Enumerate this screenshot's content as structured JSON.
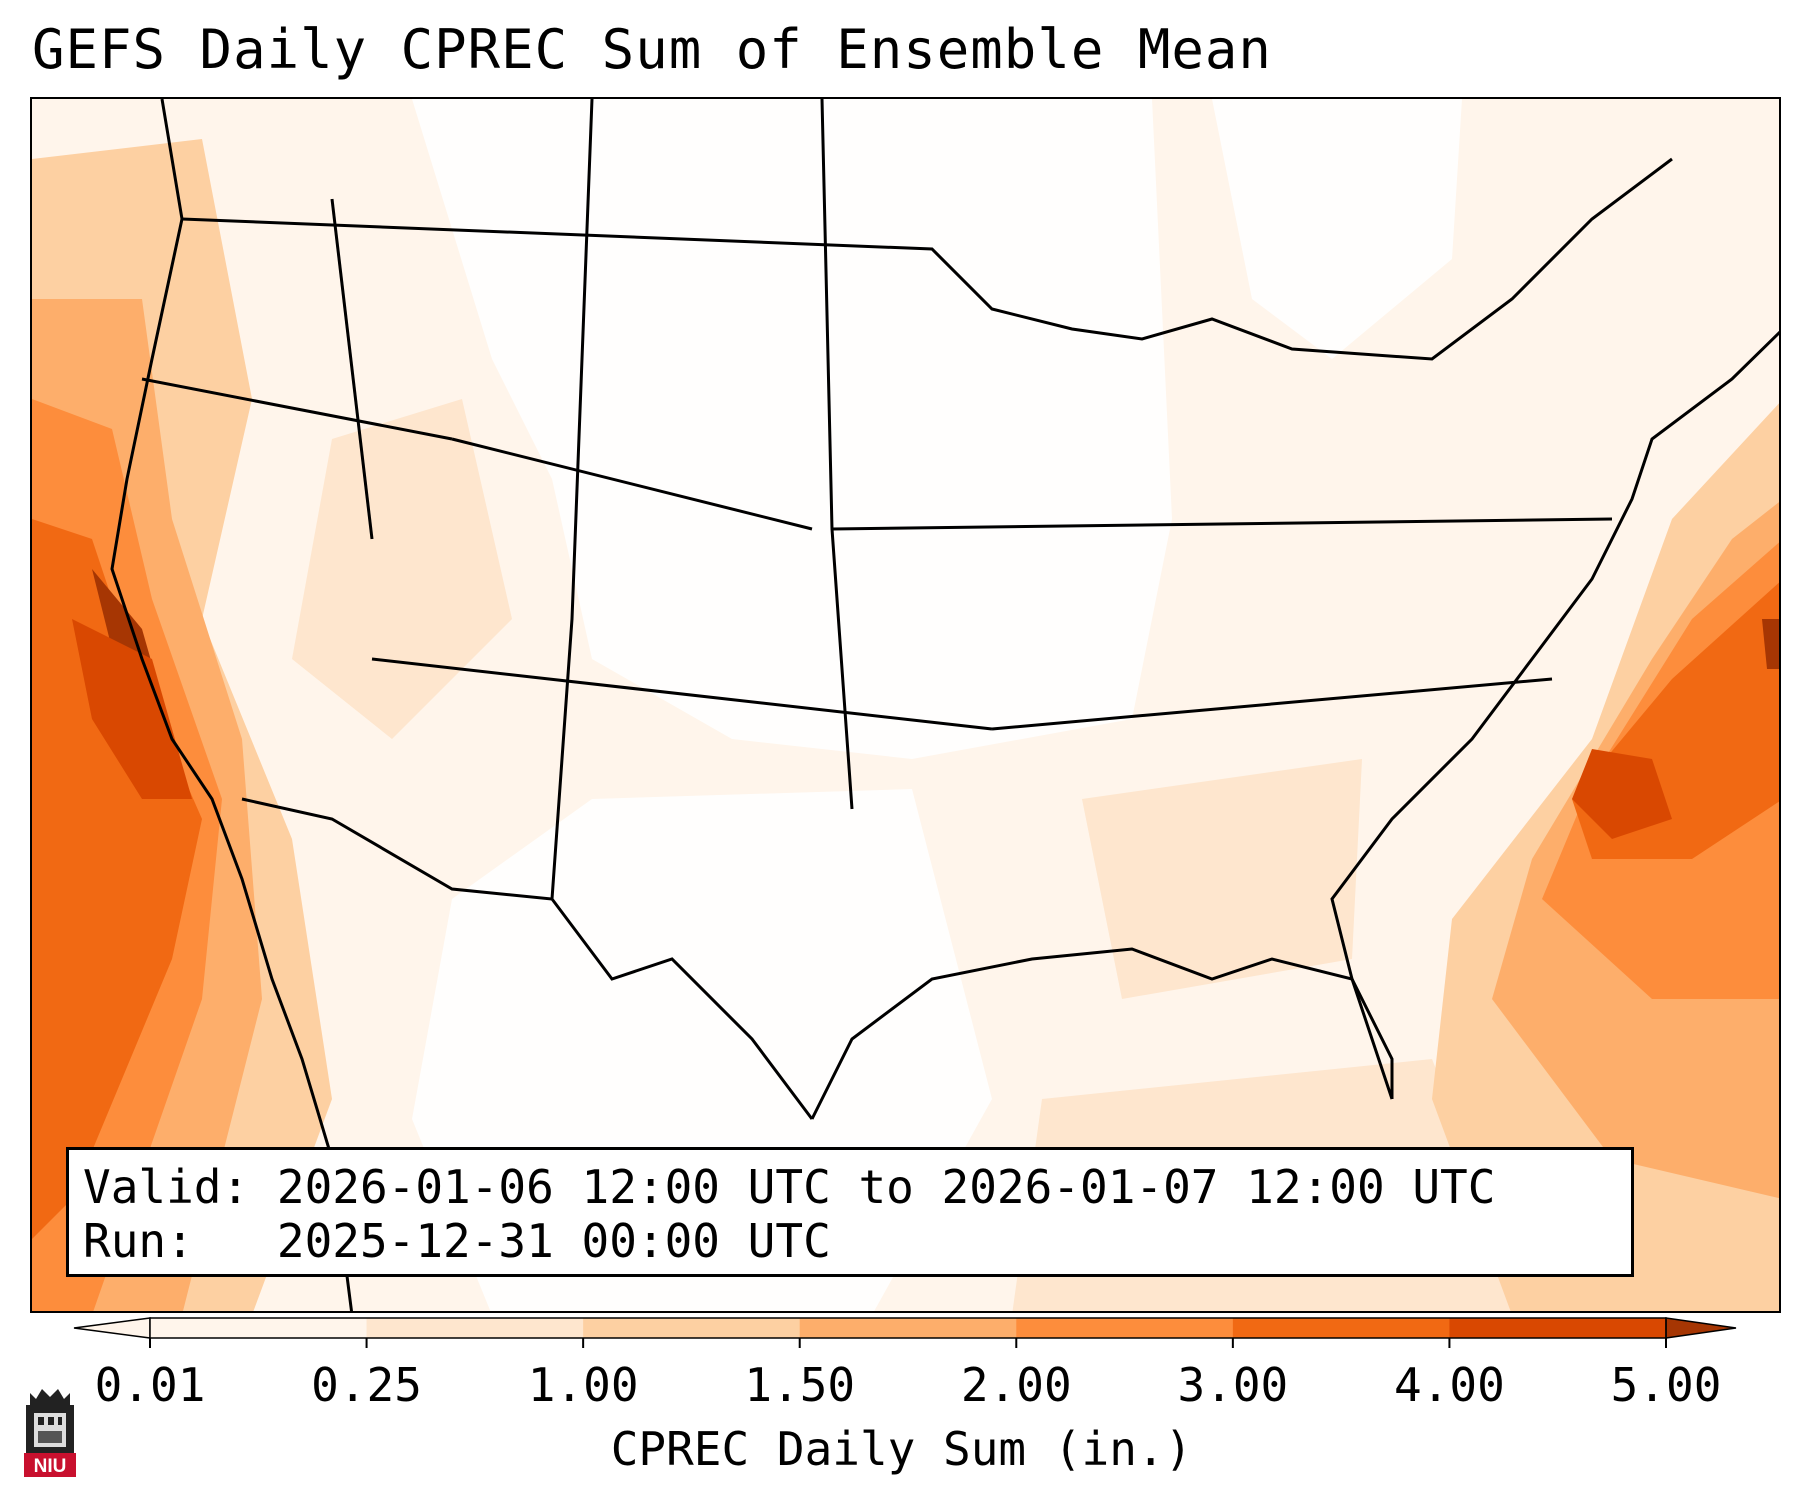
{
  "title": "GEFS Daily CPREC Sum of Ensemble Mean",
  "info": {
    "valid_label": "Valid:",
    "valid_value": "2026-01-06 12:00 UTC to 2026-01-07 12:00 UTC",
    "run_label": "Run:",
    "run_value": "2025-12-31 00:00 UTC"
  },
  "colorbar": {
    "label": "CPREC Daily Sum (in.)",
    "ticks": [
      "0.01",
      "0.25",
      "1.00",
      "1.50",
      "2.00",
      "3.00",
      "4.00",
      "5.00"
    ],
    "colors": [
      "#fff5eb",
      "#fee6ce",
      "#fdd0a2",
      "#fdae6b",
      "#fd8d3c",
      "#f16913",
      "#d94801",
      "#a63603"
    ],
    "extend": "both"
  },
  "logo": {
    "text": "NIU",
    "color": "#c8102e"
  },
  "map": {
    "projection": "Lambert conformal (CONUS)",
    "max_region_offshore": [
      "Pacific off central California",
      "Atlantic off the Carolinas"
    ]
  }
}
